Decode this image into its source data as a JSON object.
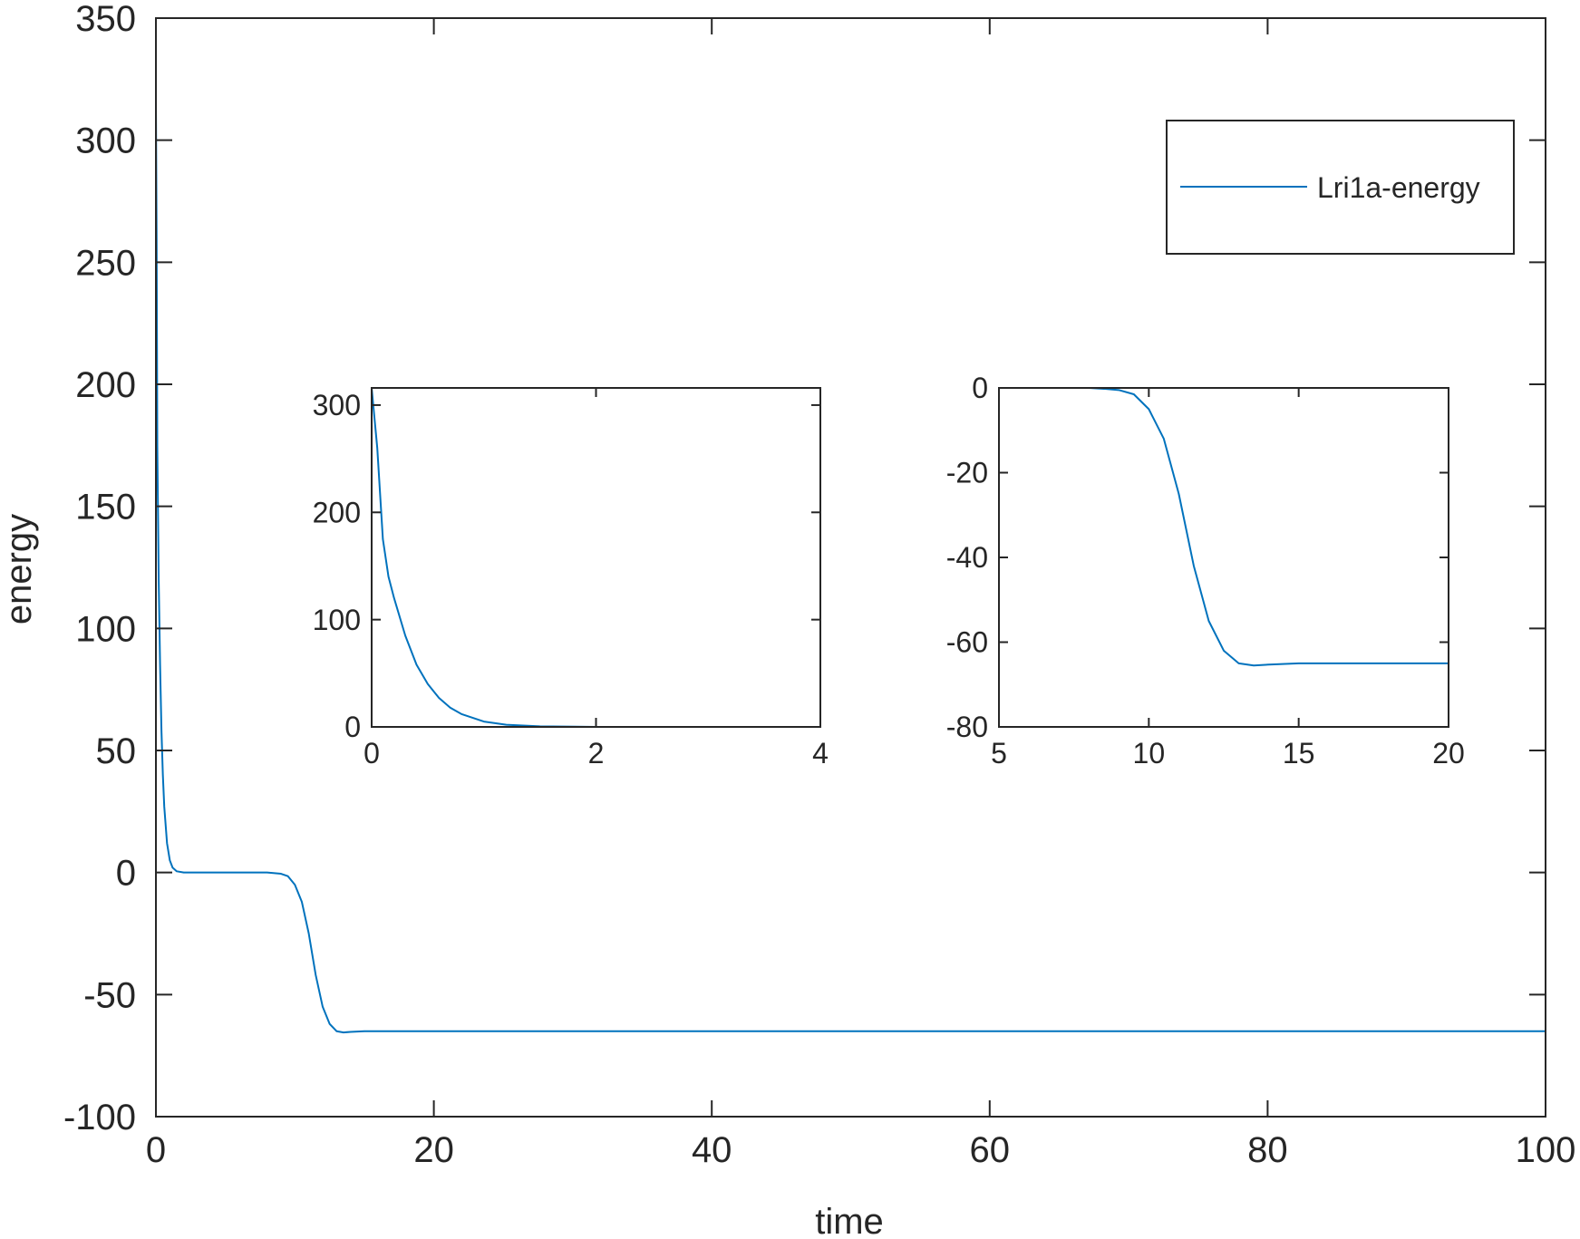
{
  "colors": {
    "series": "#0072BD",
    "axes": "#262626",
    "background": "#ffffff"
  },
  "legend": {
    "entries": [
      "Lri1a-energy"
    ],
    "placement": "top-right"
  },
  "chart_data": [
    {
      "id": "main",
      "type": "line",
      "title": "",
      "xlabel": "time",
      "ylabel": "energy",
      "xlim": [
        0,
        100
      ],
      "ylim": [
        -100,
        350
      ],
      "xticks": [
        0,
        20,
        40,
        60,
        80,
        100
      ],
      "yticks": [
        -100,
        -50,
        0,
        50,
        100,
        150,
        200,
        250,
        300,
        350
      ],
      "grid": false,
      "series": [
        {
          "name": "Lri1a-energy",
          "x": [
            0,
            0.05,
            0.1,
            0.2,
            0.3,
            0.4,
            0.5,
            0.6,
            0.8,
            1.0,
            1.2,
            1.5,
            2,
            4,
            6,
            8,
            9,
            9.5,
            10,
            10.5,
            11,
            11.5,
            12,
            12.5,
            13,
            13.5,
            14,
            15,
            16,
            20,
            40,
            60,
            80,
            100
          ],
          "y": [
            316,
            260,
            175,
            120,
            85,
            58,
            40,
            27,
            12,
            5,
            2,
            0.5,
            0,
            0,
            0,
            0,
            -0.5,
            -1.5,
            -5,
            -12,
            -25,
            -42,
            -55,
            -62,
            -65,
            -65.5,
            -65.3,
            -65,
            -65,
            -65,
            -65,
            -65,
            -65,
            -65
          ]
        }
      ]
    },
    {
      "id": "inset-left",
      "type": "line",
      "title": "",
      "xlabel": "",
      "ylabel": "",
      "xlim": [
        0,
        4
      ],
      "ylim": [
        0,
        316
      ],
      "xticks": [
        0,
        2,
        4
      ],
      "yticks": [
        0,
        100,
        200,
        300
      ],
      "grid": false,
      "series": [
        {
          "x": [
            0,
            0.05,
            0.1,
            0.15,
            0.2,
            0.3,
            0.4,
            0.5,
            0.6,
            0.7,
            0.8,
            1.0,
            1.2,
            1.5,
            2,
            3,
            4
          ],
          "y": [
            316,
            260,
            175,
            140,
            120,
            85,
            58,
            40,
            27,
            18,
            12,
            5,
            2,
            0.5,
            0,
            0,
            0
          ]
        }
      ]
    },
    {
      "id": "inset-right",
      "type": "line",
      "title": "",
      "xlabel": "",
      "ylabel": "",
      "xlim": [
        5,
        20
      ],
      "ylim": [
        -80,
        0
      ],
      "xticks": [
        5,
        10,
        15,
        20
      ],
      "yticks": [
        -80,
        -60,
        -40,
        -20,
        0
      ],
      "grid": false,
      "series": [
        {
          "x": [
            5,
            7,
            8,
            8.5,
            9,
            9.5,
            10,
            10.5,
            11,
            11.5,
            12,
            12.5,
            13,
            13.5,
            14,
            15,
            16,
            17,
            18,
            19,
            20
          ],
          "y": [
            0,
            0,
            0,
            -0.2,
            -0.5,
            -1.5,
            -5,
            -12,
            -25,
            -42,
            -55,
            -62,
            -65,
            -65.5,
            -65.3,
            -65,
            -65,
            -65,
            -65,
            -65,
            -65
          ]
        }
      ]
    }
  ]
}
